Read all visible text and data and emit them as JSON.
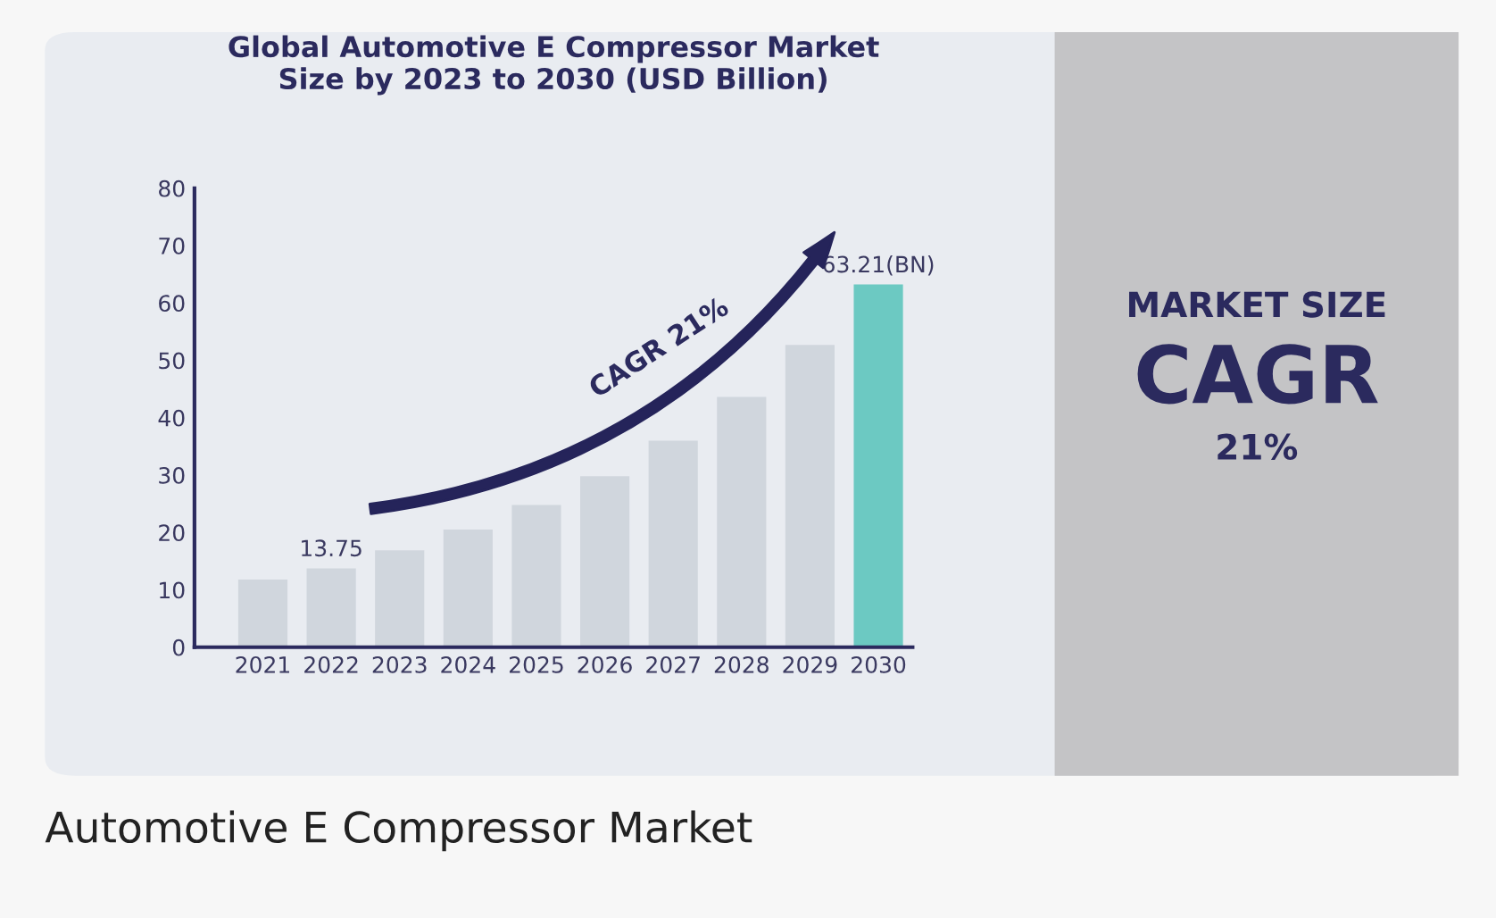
{
  "chart_data": {
    "type": "bar",
    "title": "Global Automotive E Compressor Market\nSize by 2023 to 2030 (USD Billion)",
    "categories": [
      "2021",
      "2022",
      "2023",
      "2024",
      "2025",
      "2026",
      "2027",
      "2028",
      "2029",
      "2030"
    ],
    "values": [
      11.8,
      13.75,
      16.9,
      20.5,
      24.8,
      29.8,
      36.0,
      43.6,
      52.7,
      63.21
    ],
    "colors": [
      "#d0d6dd",
      "#d0d6dd",
      "#d0d6dd",
      "#d0d6dd",
      "#d0d6dd",
      "#d0d6dd",
      "#d0d6dd",
      "#d0d6dd",
      "#d0d6dd",
      "#6cc9c2"
    ],
    "value_labels": [
      null,
      "13.75",
      null,
      null,
      null,
      null,
      null,
      null,
      null,
      "63.21(BN)"
    ],
    "ylim": [
      0,
      80
    ],
    "yticks": [
      0,
      10,
      20,
      30,
      40,
      50,
      60,
      70,
      80
    ],
    "grid": false,
    "annotations": [
      "CAGR 21%",
      "MARKET SIZE",
      "CAGR",
      "21%",
      "Automotive E Compressor Market"
    ]
  }
}
